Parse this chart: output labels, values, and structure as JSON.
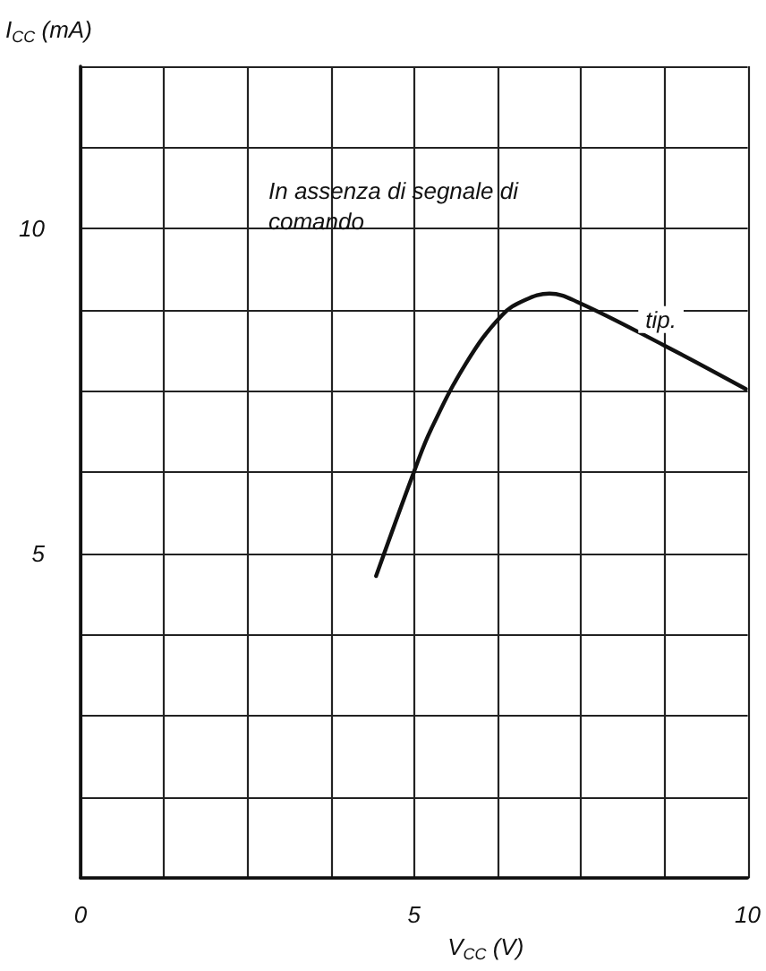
{
  "chart_data": {
    "type": "line",
    "xlabel": "V$_{CC}$ (V)",
    "ylabel": "I$_{CC}$ (mA)",
    "x": [
      4.43,
      5.0,
      5.25,
      5.78,
      6.31,
      6.66,
      7.03,
      7.45,
      8.75,
      9.97
    ],
    "series": [
      {
        "color": "#111111",
        "values": [
          4.65,
          6.26,
          6.9,
          7.93,
          8.66,
          8.9,
          9.0,
          8.87,
          8.2,
          7.53
        ]
      }
    ],
    "xlim": [
      0,
      10
    ],
    "ylim": [
      0,
      12.5
    ],
    "xticks": [
      {
        "value": 0,
        "label": "0"
      },
      {
        "value": 1.25,
        "label": null
      },
      {
        "value": 2.5,
        "label": null
      },
      {
        "value": 3.75,
        "label": null
      },
      5,
      {
        "value": 6.25,
        "label": null
      },
      {
        "value": 7.5,
        "label": null
      },
      {
        "value": 8.75,
        "label": null
      },
      10
    ],
    "yticks": [
      {
        "value": 0,
        "label": null
      },
      {
        "value": 1.25,
        "label": null
      },
      {
        "value": 2.5,
        "label": null
      },
      {
        "value": 3.75,
        "label": null
      },
      5,
      {
        "value": 6.25,
        "label": null
      },
      {
        "value": 7.5,
        "label": null
      },
      {
        "value": 8.75,
        "label": null
      },
      10,
      {
        "value": 11.25,
        "label": null
      },
      {
        "value": 12.5,
        "label": null
      }
    ],
    "grid": true,
    "marker": "none",
    "line_style": "solid",
    "annotations": [
      "In assenza di segnale di comando",
      {
        "text": "tip.",
        "x": 8.7,
        "y": 8.6
      }
    ]
  }
}
